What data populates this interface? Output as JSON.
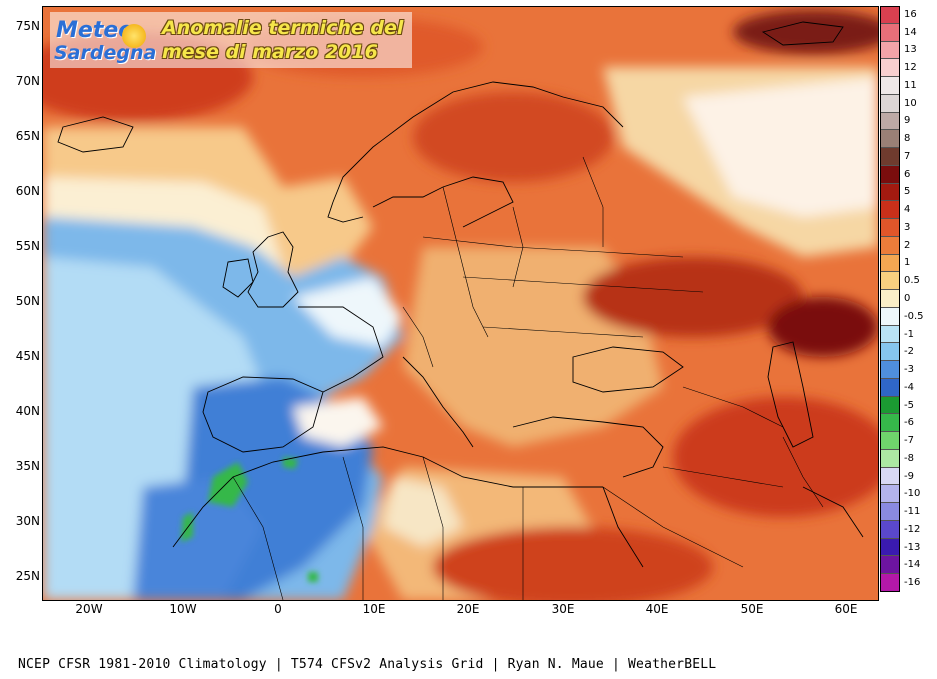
{
  "logo": {
    "brand_line1": "Meteo",
    "brand_line2": "Sardegna",
    "title_line1": "Anomalie termiche del",
    "title_line2": "mese di marzo 2016"
  },
  "map": {
    "latitude_labels": [
      "75N",
      "70N",
      "65N",
      "60N",
      "55N",
      "50N",
      "45N",
      "40N",
      "35N",
      "30N",
      "25N"
    ],
    "longitude_labels": [
      "20W",
      "10W",
      "0",
      "10E",
      "20E",
      "30E",
      "40E",
      "50E",
      "60E"
    ]
  },
  "legend": {
    "values": [
      "16",
      "14",
      "13",
      "12",
      "11",
      "10",
      "9",
      "8",
      "7",
      "6",
      "5",
      "4",
      "3",
      "2",
      "1",
      "0.5",
      "0",
      "-0.5",
      "-1",
      "-2",
      "-3",
      "-4",
      "-5",
      "-6",
      "-7",
      "-8",
      "-9",
      "-10",
      "-11",
      "-12",
      "-13",
      "-14",
      "-16"
    ],
    "colors": [
      "#d94050",
      "#e86f79",
      "#f3a4a8",
      "#f8cfcf",
      "#efe8e8",
      "#ddd6d6",
      "#bda9a6",
      "#9a8076",
      "#6f3b2e",
      "#7a0d0d",
      "#a31a10",
      "#c9301a",
      "#e0562a",
      "#ec7c3a",
      "#f4a652",
      "#f8cf80",
      "#fbefc8",
      "#eef7fb",
      "#b9e3f6",
      "#86c5ee",
      "#4f8fdc",
      "#2f66c8",
      "#1b9a32",
      "#36b84a",
      "#6fd46c",
      "#ace8a3",
      "#d8d8f4",
      "#b3b3ec",
      "#8a8ae0",
      "#5a48cc",
      "#3a1ab0",
      "#6d14a0",
      "#b318a8"
    ]
  },
  "footer": {
    "credits": "NCEP CFSR 1981-2010 Climatology | T574 CFSv2 Analysis Grid | Ryan N. Maue | WeatherBELL"
  }
}
